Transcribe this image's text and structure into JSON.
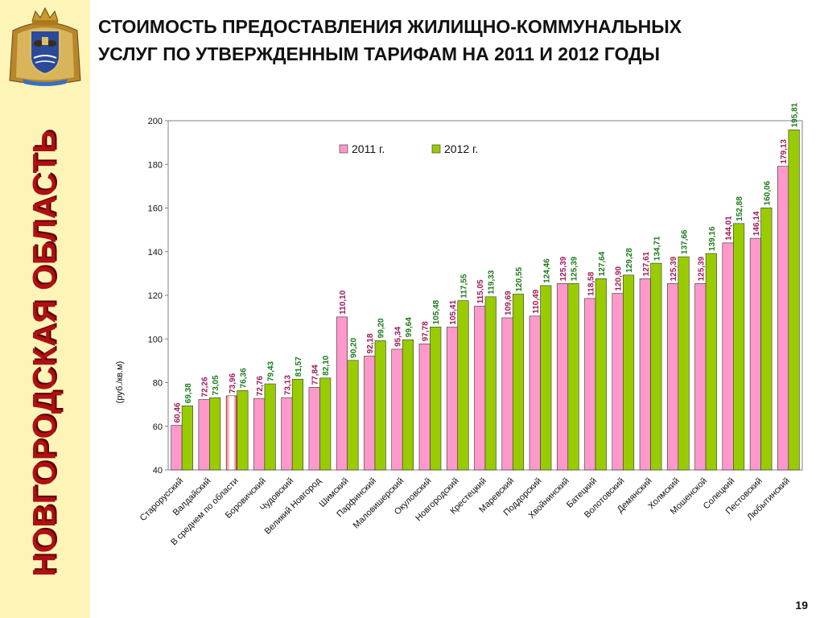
{
  "sidebar": {
    "vertical_title": "НОВГОРОДСКАЯ ОБЛАСТЬ",
    "background_color": "#fdf5b8",
    "title_color": "#b01010",
    "emblem_icon": "coat-of-arms-icon"
  },
  "header": {
    "title_line1": "СТОИМОСТЬ ПРЕДОСТАВЛЕНИЯ ЖИЛИЩНО-КОММУНАЛЬНЫХ",
    "title_line2": "УСЛУГ ПО УТВЕРЖДЕННЫМ ТАРИФАМ НА 2011 И 2012 ГОДЫ"
  },
  "page_number": "19",
  "chart_data": {
    "type": "bar",
    "title": "",
    "xlabel": "",
    "ylabel": "(руб./кв.м)",
    "ylim": [
      40,
      200
    ],
    "yticks": [
      40,
      60,
      80,
      100,
      120,
      140,
      160,
      180,
      200
    ],
    "grid": false,
    "legend_position": "top-center",
    "highlight_category": "В среднем по области",
    "categories": [
      "Старорусский",
      "Валдайский",
      "В среднем по области",
      "Боровичский",
      "Чудовский",
      "Великий Новгород",
      "Шимский",
      "Парфинский",
      "Маловишерский",
      "Окуловский",
      "Новгородский",
      "Крестецкий",
      "Маревский",
      "Поддорский",
      "Хвойнинский",
      "Батецкий",
      "Волотовский",
      "Демянский",
      "Холмский",
      "Мошенской",
      "Солецкий",
      "Пестовский",
      "Любытинский"
    ],
    "series": [
      {
        "name": "2011 г.",
        "color": "#ff99cc",
        "label_color": "#a0185a",
        "values": [
          60.46,
          72.26,
          73.96,
          72.76,
          73.13,
          77.84,
          110.1,
          92.18,
          95.34,
          97.78,
          105.41,
          115.05,
          109.69,
          110.49,
          125.39,
          118.58,
          120.9,
          127.61,
          125.39,
          125.39,
          144.01,
          146.14,
          179.13
        ],
        "labels": [
          "60,46",
          "72,26",
          "73,96",
          "72,76",
          "73,13",
          "77,84",
          "110,10",
          "92,18",
          "95,34",
          "97,78",
          "105,41",
          "115,05",
          "109,69",
          "110,49",
          "125,39",
          "118,58",
          "120,90",
          "127,61",
          "125,39",
          "125,39",
          "144,01",
          "146,14",
          "179,13"
        ]
      },
      {
        "name": "2012 г.",
        "color": "#99cc00",
        "label_color": "#1a7a1a",
        "values": [
          69.38,
          73.05,
          76.36,
          79.43,
          81.57,
          82.1,
          90.2,
          99.2,
          99.64,
          105.48,
          117.55,
          119.33,
          120.55,
          124.46,
          125.39,
          127.64,
          129.28,
          134.71,
          137.66,
          139.16,
          152.88,
          160.06,
          195.81
        ],
        "labels": [
          "69,38",
          "73,05",
          "76,36",
          "79,43",
          "81,57",
          "82,10",
          "90,20",
          "99,20",
          "99,64",
          "105,48",
          "117,55",
          "119,33",
          "120,55",
          "124,46",
          "125,39",
          "127,64",
          "129,28",
          "134,71",
          "137,66",
          "139,16",
          "152,88",
          "160,06",
          "195,81"
        ]
      }
    ]
  }
}
